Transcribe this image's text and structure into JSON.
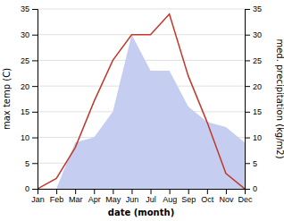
{
  "chart_data": {
    "type": "line",
    "categories": [
      "Jan",
      "Feb",
      "Mar",
      "Apr",
      "May",
      "Jun",
      "Jul",
      "Aug",
      "Sep",
      "Oct",
      "Nov",
      "Dec"
    ],
    "series": [
      {
        "type": "area",
        "color": "#c5cdf0",
        "axis": "y2",
        "values": [
          0,
          0,
          9,
          10,
          15,
          30,
          23,
          23,
          16,
          13,
          12,
          9
        ]
      },
      {
        "type": "line",
        "color": "#c0392b",
        "values": [
          0,
          2,
          8,
          17,
          25,
          30,
          30,
          34,
          22,
          13,
          3,
          0
        ]
      }
    ],
    "xlabel": "date (month)",
    "ylabel": "max temp (C)",
    "y2label": "med. precipitation (kg/m2)",
    "ylim": [
      0,
      35
    ],
    "yticks": [
      0,
      5,
      10,
      15,
      20,
      25,
      30,
      35
    ],
    "y2lim": [
      0,
      35
    ],
    "y2ticks": [
      0,
      5,
      10,
      15,
      20,
      25,
      30,
      35
    ],
    "grid": true
  }
}
